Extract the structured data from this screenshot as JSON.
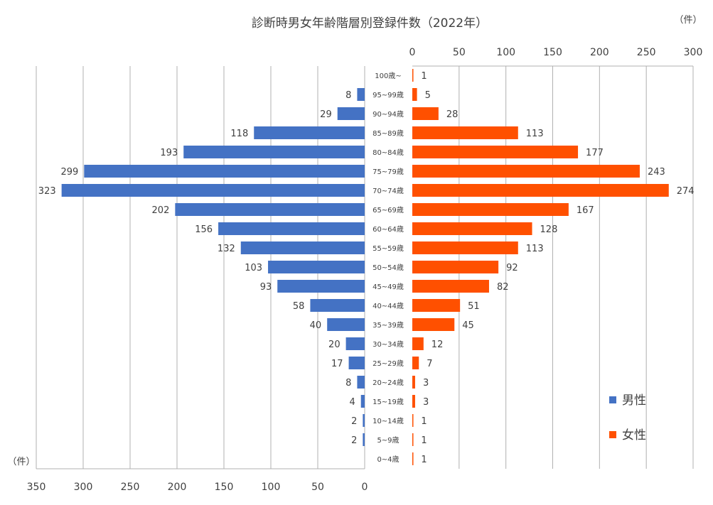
{
  "chart_data": {
    "type": "bar",
    "title": "診断時男女年齢階層別登録件数（2022年）",
    "unit_label_top": "（件）",
    "unit_label_bottom": "（件）",
    "categories": [
      "100歳~",
      "95~99歳",
      "90~94歳",
      "85~89歳",
      "80~84歳",
      "75~79歳",
      "70~74歳",
      "65~69歳",
      "60~64歳",
      "55~59歳",
      "50~54歳",
      "45~49歳",
      "40~44歳",
      "35~39歳",
      "30~34歳",
      "25~29歳",
      "20~24歳",
      "15~19歳",
      "10~14歳",
      "5~9歳",
      "0~4歳"
    ],
    "series": [
      {
        "name": "男性",
        "color": "#4472C4",
        "values": [
          null,
          8,
          29,
          118,
          193,
          299,
          323,
          202,
          156,
          132,
          103,
          93,
          58,
          40,
          20,
          17,
          8,
          4,
          2,
          2,
          null
        ]
      },
      {
        "name": "女性",
        "color": "#FF5000",
        "values": [
          1,
          5,
          28,
          113,
          177,
          243,
          274,
          167,
          128,
          113,
          92,
          82,
          51,
          45,
          12,
          7,
          3,
          3,
          1,
          1,
          1
        ]
      }
    ],
    "male_axis": {
      "range": [
        0,
        350
      ],
      "ticks": [
        350,
        300,
        250,
        200,
        150,
        100,
        50,
        0
      ],
      "position": "bottom"
    },
    "female_axis": {
      "range": [
        0,
        300
      ],
      "ticks": [
        0,
        50,
        100,
        150,
        200,
        250,
        300
      ],
      "position": "top"
    },
    "grid": true,
    "legend_position": "bottom-right"
  }
}
